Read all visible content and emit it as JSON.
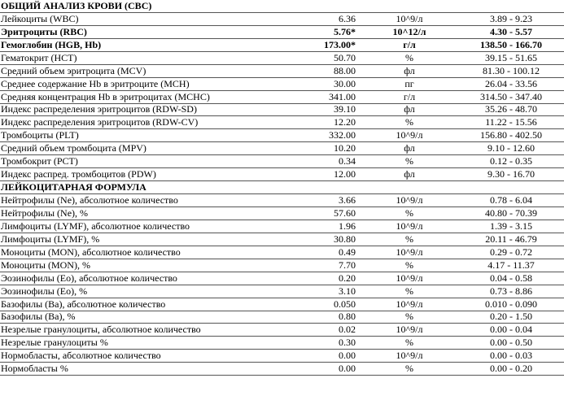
{
  "title": "ОБЩИЙ АНАЛИЗ КРОВИ (CBC)",
  "rows_cbc": [
    {
      "name": "Лейкоциты (WBC)",
      "result": "6.36",
      "unit": "10^9/л",
      "ref": "3.89 - 9.23",
      "flag": false
    },
    {
      "name": "Эритроциты (RBC)",
      "result": "5.76*",
      "unit": "10^12/л",
      "ref": "4.30 - 5.57",
      "flag": true
    },
    {
      "name": "Гемоглобин (HGB, Hb)",
      "result": "173.00*",
      "unit": "г/л",
      "ref": "138.50 - 166.70",
      "flag": true
    },
    {
      "name": "Гематокрит (HCT)",
      "result": "50.70",
      "unit": "%",
      "ref": "39.15 - 51.65",
      "flag": false
    },
    {
      "name": "Средний объем эритроцита (MCV)",
      "result": "88.00",
      "unit": "фл",
      "ref": "81.30 - 100.12",
      "flag": false
    },
    {
      "name": "Среднее содержание Hb в эритроците (MCH)",
      "result": "30.00",
      "unit": "пг",
      "ref": "26.04 - 33.56",
      "flag": false
    },
    {
      "name": "Средняя концентрация Hb в эритроцитах (MCHC)",
      "result": "341.00",
      "unit": "г/л",
      "ref": "314.50 - 347.40",
      "flag": false
    },
    {
      "name": "Индекс распределения эритроцитов (RDW-SD)",
      "result": "39.10",
      "unit": "фл",
      "ref": "35.26 - 48.70",
      "flag": false
    },
    {
      "name": "Индекс распределения эритроцитов (RDW-CV)",
      "result": "12.20",
      "unit": "%",
      "ref": "11.22 - 15.56",
      "flag": false
    },
    {
      "name": "Тромбоциты (PLT)",
      "result": "332.00",
      "unit": "10^9/л",
      "ref": "156.80 - 402.50",
      "flag": false
    },
    {
      "name": "Средний объем тромбоцита (MPV)",
      "result": "10.20",
      "unit": "фл",
      "ref": "9.10 - 12.60",
      "flag": false
    },
    {
      "name": "Тромбокрит (PCT)",
      "result": "0.34",
      "unit": "%",
      "ref": "0.12 - 0.35",
      "flag": false
    },
    {
      "name": "Индекс распред. тромбоцитов (PDW)",
      "result": "12.00",
      "unit": "фл",
      "ref": "9.30 - 16.70",
      "flag": false
    }
  ],
  "section2_title": "ЛЕЙКОЦИТАРНАЯ ФОРМУЛА",
  "rows_diff": [
    {
      "name": "Нейтрофилы (Ne), абсолютное количество",
      "result": "3.66",
      "unit": "10^9/л",
      "ref": "0.78 - 6.04",
      "flag": false
    },
    {
      "name": "Нейтрофилы (Ne), %",
      "result": "57.60",
      "unit": "%",
      "ref": "40.80 - 70.39",
      "flag": false
    },
    {
      "name": "Лимфоциты (LYMF), абсолютное количество",
      "result": "1.96",
      "unit": "10^9/л",
      "ref": "1.39 - 3.15",
      "flag": false
    },
    {
      "name": "Лимфоциты (LYMF), %",
      "result": "30.80",
      "unit": "%",
      "ref": "20.11 - 46.79",
      "flag": false
    },
    {
      "name": "Моноциты (MON), абсолютное количество",
      "result": "0.49",
      "unit": "10^9/л",
      "ref": "0.29 - 0.72",
      "flag": false
    },
    {
      "name": "Моноциты (MON), %",
      "result": "7.70",
      "unit": "%",
      "ref": "4.17 - 11.37",
      "flag": false
    },
    {
      "name": "Эозинофилы (Eo), абсолютное количество",
      "result": "0.20",
      "unit": "10^9/л",
      "ref": "0.04 - 0.58",
      "flag": false
    },
    {
      "name": "Эозинофилы (Eo), %",
      "result": "3.10",
      "unit": "%",
      "ref": "0.73 - 8.86",
      "flag": false
    },
    {
      "name": "Базофилы (Ba), абсолютное количество",
      "result": "0.050",
      "unit": "10^9/л",
      "ref": "0.010 - 0.090",
      "flag": false
    },
    {
      "name": "Базофилы (Ba), %",
      "result": "0.80",
      "unit": "%",
      "ref": "0.20 - 1.50",
      "flag": false
    },
    {
      "name": "Незрелые гранулоциты, абсолютное количество",
      "result": "0.02",
      "unit": "10^9/л",
      "ref": "0.00 - 0.04",
      "flag": false
    },
    {
      "name": "Незрелые гранулоциты %",
      "result": "0.30",
      "unit": "%",
      "ref": "0.00 - 0.50",
      "flag": false
    },
    {
      "name": "Нормобласты, абсолютное количество",
      "result": "0.00",
      "unit": "10^9/л",
      "ref": "0.00 - 0.03",
      "flag": false
    },
    {
      "name": "Нормобласты %",
      "result": "0.00",
      "unit": "%",
      "ref": "0.00 - 0.20",
      "flag": false
    }
  ]
}
